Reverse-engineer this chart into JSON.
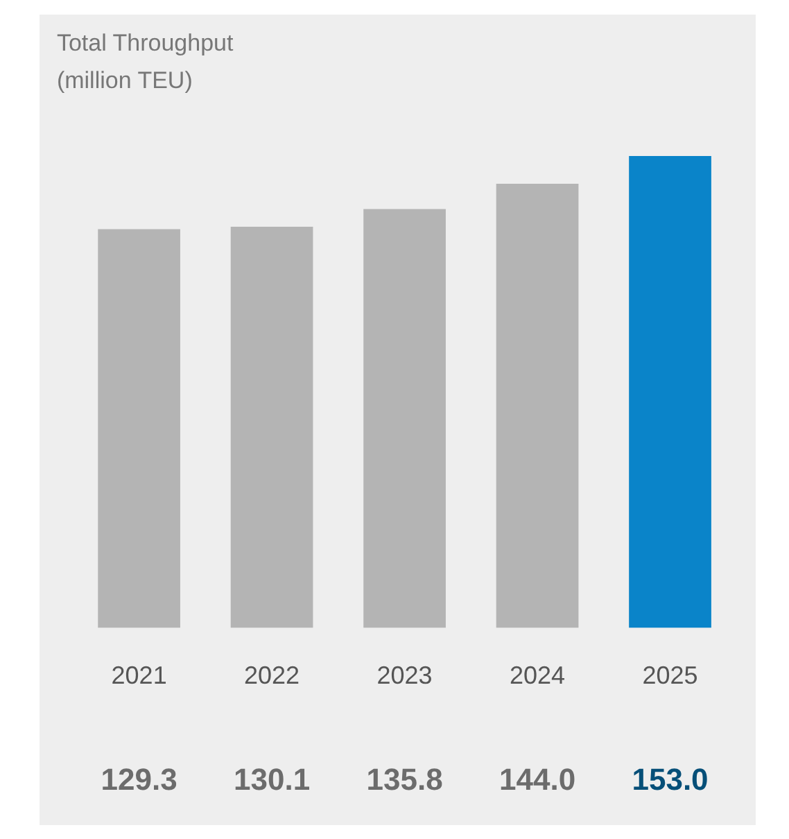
{
  "chart_data": {
    "type": "bar",
    "title": "Total Throughput",
    "ylabel": "(million TEU)",
    "categories": [
      "2021",
      "2022",
      "2023",
      "2024",
      "2025"
    ],
    "values": [
      129.3,
      130.1,
      135.8,
      144.0,
      153.0
    ],
    "colors": [
      "#b4b4b4",
      "#b4b4b4",
      "#b4b4b4",
      "#b4b4b4",
      "#0a84c9"
    ],
    "value_labels": [
      "129.3",
      "130.1",
      "135.8",
      "144.0",
      "153.0"
    ],
    "grid": false
  }
}
